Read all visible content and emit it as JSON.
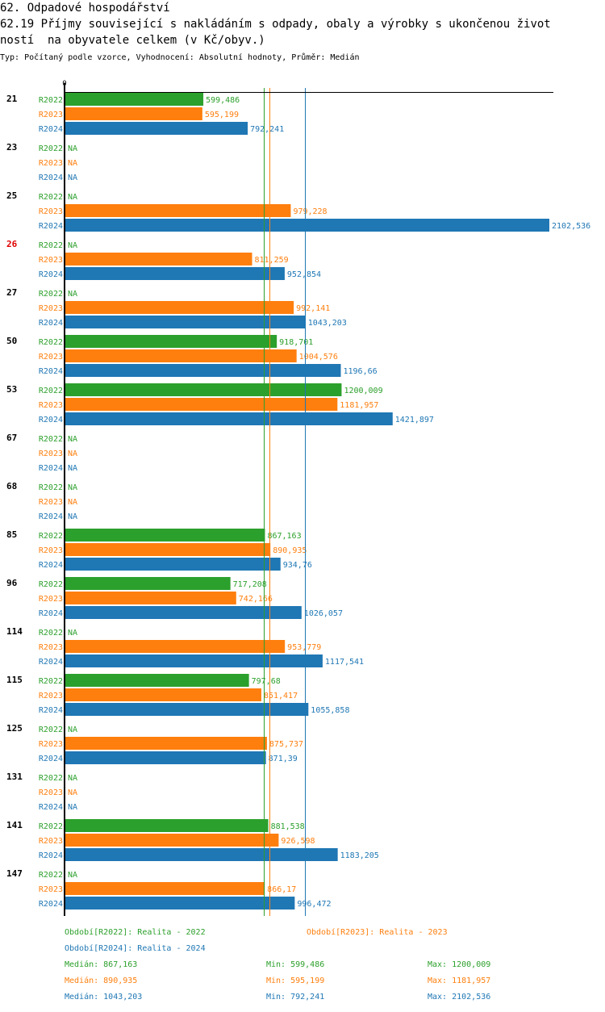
{
  "header": {
    "line1": "62. Odpadové hospodářství",
    "line2": "62.19 Příjmy související s nakládáním s odpady, obaly a výrobky s ukončenou život",
    "line3": "ností  na obyvatele celkem (v Kč/obyv.)",
    "info": "Typ: Počítaný podle vzorce, Vyhodnocení: Absolutní hodnoty, Průměr: Medián"
  },
  "colors": {
    "R2022": "#2ca02c",
    "R2023": "#ff7f0e",
    "R2024": "#1f77b4",
    "highlight": "#e00000",
    "axis": "#000000"
  },
  "chart_data": {
    "type": "bar",
    "orientation": "horizontal",
    "xlim": [
      0,
      2102.536
    ],
    "axis_zero_label": "0",
    "series_names": [
      "R2022",
      "R2023",
      "R2024"
    ],
    "highlight_category": "26",
    "categories": [
      "21",
      "23",
      "25",
      "26",
      "27",
      "50",
      "53",
      "67",
      "68",
      "85",
      "96",
      "114",
      "115",
      "125",
      "131",
      "141",
      "147"
    ],
    "series": [
      {
        "name": "R2022",
        "values": [
          599.486,
          null,
          null,
          null,
          null,
          918.701,
          1200.009,
          null,
          null,
          867.163,
          717.208,
          null,
          797.68,
          null,
          null,
          881.538,
          null
        ],
        "labels": [
          "599,486",
          "NA",
          "NA",
          "NA",
          "NA",
          "918,701",
          "1200,009",
          "NA",
          "NA",
          "867,163",
          "717,208",
          "NA",
          "797,68",
          "NA",
          "NA",
          "881,538",
          "NA"
        ]
      },
      {
        "name": "R2023",
        "values": [
          595.199,
          null,
          979.228,
          811.259,
          992.141,
          1004.576,
          1181.957,
          null,
          null,
          890.935,
          742.166,
          953.779,
          851.417,
          875.737,
          null,
          926.598,
          866.17
        ],
        "labels": [
          "595,199",
          "NA",
          "979,228",
          "811,259",
          "992,141",
          "1004,576",
          "1181,957",
          "NA",
          "NA",
          "890,935",
          "742,166",
          "953,779",
          "851,417",
          "875,737",
          "NA",
          "926,598",
          "866,17"
        ]
      },
      {
        "name": "R2024",
        "values": [
          792.241,
          null,
          2102.536,
          952.854,
          1043.203,
          1196.66,
          1421.897,
          null,
          null,
          934.76,
          1026.057,
          1117.541,
          1055.858,
          871.39,
          null,
          1183.205,
          996.472
        ],
        "labels": [
          "792,241",
          "NA",
          "2102,536",
          "952,854",
          "1043,203",
          "1196,66",
          "1421,897",
          "NA",
          "NA",
          "934,76",
          "1026,057",
          "1117,541",
          "1055,858",
          "871,39",
          "NA",
          "1183,205",
          "996,472"
        ]
      }
    ],
    "medians": {
      "R2022": 867.163,
      "R2023": 890.935,
      "R2024": 1043.203
    }
  },
  "legend": {
    "periods": [
      {
        "text": "Období[R2022]: Realita - 2022",
        "series": "R2022"
      },
      {
        "text": "Období[R2023]: Realita - 2023",
        "series": "R2023"
      },
      {
        "text": "Období[R2024]: Realita - 2024",
        "series": "R2024"
      }
    ],
    "stats": [
      {
        "series": "R2022",
        "median": "Medián: 867,163",
        "min": "Min: 599,486",
        "max": "Max: 1200,009"
      },
      {
        "series": "R2023",
        "median": "Medián: 890,935",
        "min": "Min: 595,199",
        "max": "Max: 1181,957"
      },
      {
        "series": "R2024",
        "median": "Medián: 1043,203",
        "min": "Min: 792,241",
        "max": "Max: 2102,536"
      }
    ]
  }
}
